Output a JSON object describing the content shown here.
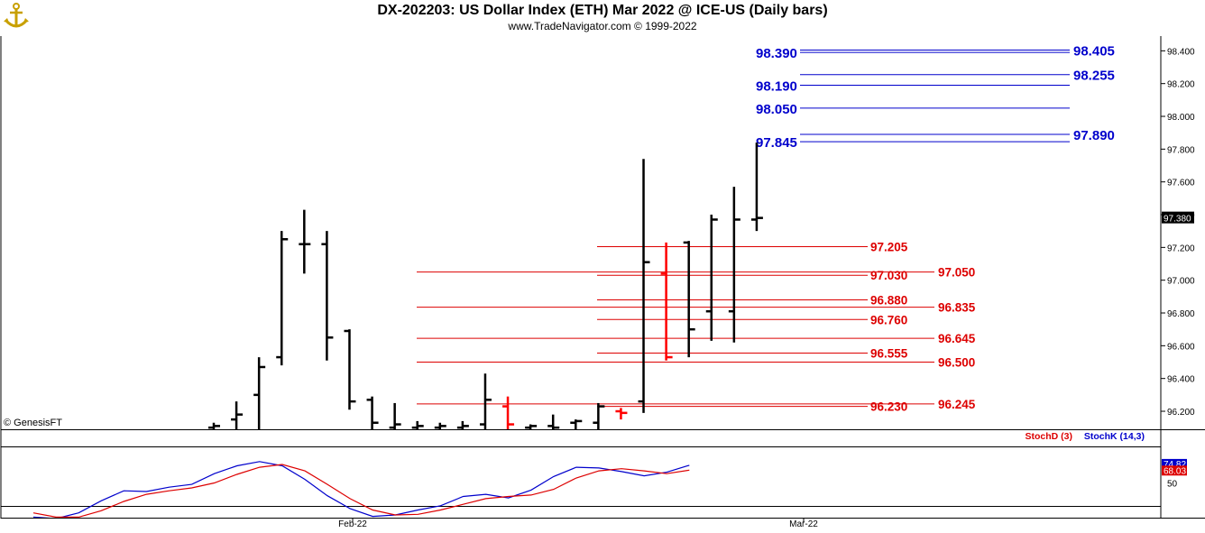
{
  "header": {
    "title": "DX-202203:  US Dollar Index (ETH) Mar 2022 @ ICE-US  (Daily bars)",
    "subtitle": "www.TradeNavigator.com © 1999-2022",
    "logo_icon": "anchor-logo-icon"
  },
  "watermark": "© GenesisFT",
  "colors": {
    "bar_default": "#000000",
    "bar_up_close_green": "#22cc22",
    "bar_red": "#ff0000",
    "level_blue": "#0000cc",
    "level_red": "#dd0000",
    "stoch_k": "#0000cc",
    "stoch_d": "#dd0000"
  },
  "chart_data": [
    {
      "type": "bar",
      "subtype": "ohlc",
      "title": "DX-202203:  US Dollar Index (ETH) Mar 2022 @ ICE-US  (Daily bars)",
      "ylim": [
        96.09,
        98.49
      ],
      "y_ticks": [
        "96.200",
        "96.400",
        "96.600",
        "96.800",
        "97.000",
        "97.200",
        "97.400",
        "97.600",
        "97.800",
        "98.000",
        "98.200",
        "98.400"
      ],
      "x_ticks": [
        "Feb-22",
        "Mar-22"
      ],
      "last_price_label": "97.380",
      "bars": [
        {
          "h": 96.13,
          "l": 96.08,
          "o": 96.1,
          "c": 96.11,
          "color": "black"
        },
        {
          "h": 96.26,
          "l": 96.08,
          "o": 96.15,
          "c": 96.18,
          "color": "black"
        },
        {
          "h": 96.53,
          "l": 96.08,
          "o": 96.3,
          "c": 96.47,
          "color": "black"
        },
        {
          "h": 97.3,
          "l": 96.48,
          "o": 96.53,
          "c": 97.25,
          "color": "black"
        },
        {
          "h": 97.43,
          "l": 97.04,
          "o": 97.22,
          "c": 97.22,
          "color": "black"
        },
        {
          "h": 97.3,
          "l": 96.51,
          "o": 97.22,
          "c": 96.65,
          "color": "black"
        },
        {
          "h": 96.7,
          "l": 96.21,
          "o": 96.69,
          "c": 96.26,
          "color": "black"
        },
        {
          "h": 96.29,
          "l": 96.08,
          "o": 96.27,
          "c": 96.13,
          "color": "black"
        },
        {
          "h": 96.25,
          "l": 96.08,
          "o": 96.1,
          "c": 96.12,
          "color": "black"
        },
        {
          "h": 96.14,
          "l": 96.08,
          "o": 96.1,
          "c": 96.11,
          "color": "black"
        },
        {
          "h": 96.13,
          "l": 96.08,
          "o": 96.1,
          "c": 96.11,
          "color": "black"
        },
        {
          "h": 96.14,
          "l": 96.08,
          "o": 96.1,
          "c": 96.11,
          "color": "black"
        },
        {
          "h": 96.43,
          "l": 96.08,
          "o": 96.12,
          "c": 96.27,
          "color": "black"
        },
        {
          "h": 96.29,
          "l": 96.08,
          "o": 96.23,
          "c": 96.12,
          "color": "red"
        },
        {
          "h": 96.12,
          "l": 96.08,
          "o": 96.1,
          "c": 96.11,
          "color": "black"
        },
        {
          "h": 96.18,
          "l": 96.08,
          "o": 96.11,
          "c": 96.1,
          "color": "black"
        },
        {
          "h": 96.15,
          "l": 96.08,
          "o": 96.13,
          "c": 96.14,
          "color": "black"
        },
        {
          "h": 96.25,
          "l": 96.08,
          "o": 96.13,
          "c": 96.23,
          "color": "black"
        },
        {
          "h": 96.22,
          "l": 96.15,
          "o": 96.2,
          "c": 96.19,
          "color": "red"
        },
        {
          "h": 97.74,
          "l": 96.19,
          "o": 96.26,
          "c": 97.11,
          "color": "black"
        },
        {
          "h": 97.23,
          "l": 96.51,
          "o": 97.04,
          "c": 96.53,
          "color": "red"
        },
        {
          "h": 97.24,
          "l": 96.53,
          "o": 97.23,
          "c": 96.7,
          "color": "black"
        },
        {
          "h": 97.4,
          "l": 96.63,
          "o": 96.81,
          "c": 97.37,
          "color": "black"
        },
        {
          "h": 97.57,
          "l": 96.62,
          "o": 96.81,
          "c": 97.37,
          "color": "black"
        },
        {
          "h": 97.84,
          "l": 97.3,
          "o": 97.37,
          "c": 97.38,
          "color": "black"
        }
      ],
      "levels_blue": [
        {
          "label": "98.390",
          "value": 98.39,
          "side": "left"
        },
        {
          "label": "98.405",
          "value": 98.405,
          "side": "right"
        },
        {
          "label": "98.255",
          "value": 98.255,
          "side": "right"
        },
        {
          "label": "98.190",
          "value": 98.19,
          "side": "left"
        },
        {
          "label": "98.050",
          "value": 98.05,
          "side": "left"
        },
        {
          "label": "97.890",
          "value": 97.89,
          "side": "right"
        },
        {
          "label": "97.845",
          "value": 97.845,
          "side": "left"
        }
      ],
      "levels_red": [
        {
          "label": "97.205",
          "value": 97.205,
          "side": "left"
        },
        {
          "label": "97.050",
          "value": 97.05,
          "side": "right"
        },
        {
          "label": "97.030",
          "value": 97.03,
          "side": "left"
        },
        {
          "label": "96.880",
          "value": 96.88,
          "side": "left"
        },
        {
          "label": "96.835",
          "value": 96.835,
          "side": "right"
        },
        {
          "label": "96.760",
          "value": 96.76,
          "side": "left"
        },
        {
          "label": "96.645",
          "value": 96.645,
          "side": "right"
        },
        {
          "label": "96.555",
          "value": 96.555,
          "side": "left"
        },
        {
          "label": "96.500",
          "value": 96.5,
          "side": "right"
        },
        {
          "label": "96.245",
          "value": 96.245,
          "side": "right"
        },
        {
          "label": "96.230",
          "value": 96.23,
          "side": "left"
        }
      ]
    },
    {
      "type": "line",
      "ylim": [
        0,
        100
      ],
      "y_ticks": [
        "50"
      ],
      "legend": [
        "StochD (3)",
        "StochK (14,3)"
      ],
      "value_labels": {
        "k": "74.82",
        "d": "68.03"
      },
      "series": [
        {
          "name": "StochK (14,3)",
          "color": "#0000cc",
          "values": [
            2,
            0,
            8,
            25,
            39,
            38,
            44,
            48,
            63,
            74,
            80,
            74,
            55,
            32,
            14,
            3,
            5,
            12,
            18,
            31,
            34,
            29,
            40,
            59,
            72,
            71,
            66,
            60,
            65,
            74.8
          ]
        },
        {
          "name": "StochD (3)",
          "color": "#dd0000",
          "values": [
            8,
            2,
            2,
            11,
            24,
            34,
            39,
            43,
            50,
            62,
            72,
            76,
            67,
            48,
            28,
            12,
            5,
            6,
            12,
            20,
            28,
            31,
            33,
            41,
            57,
            67,
            70,
            67,
            63,
            68.0
          ]
        }
      ]
    }
  ]
}
